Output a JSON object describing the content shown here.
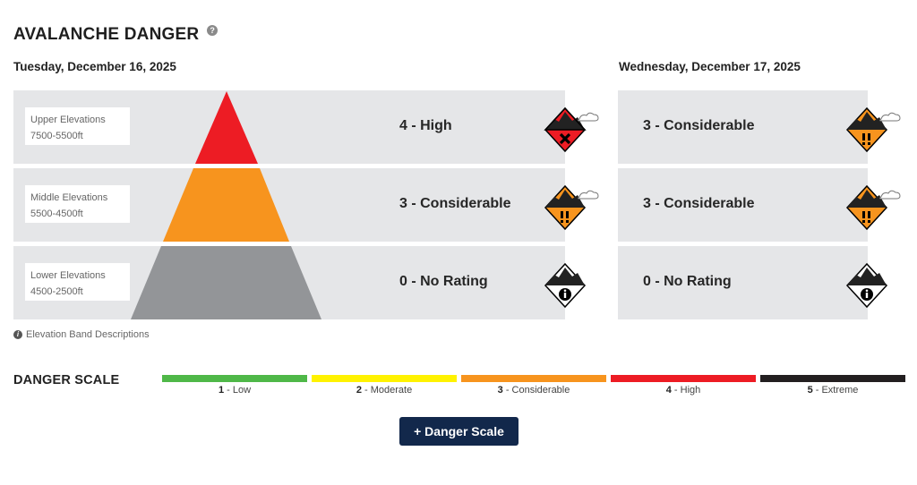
{
  "header": {
    "title": "AVALANCHE DANGER"
  },
  "days": [
    {
      "date": "Tuesday, December 16, 2025",
      "bands": [
        {
          "name": "Upper Elevations",
          "range": "7500-5500ft",
          "rating": "4 - High",
          "level": 4
        },
        {
          "name": "Middle Elevations",
          "range": "5500-4500ft",
          "rating": "3 - Considerable",
          "level": 3
        },
        {
          "name": "Lower Elevations",
          "range": "4500-2500ft",
          "rating": "0 - No Rating",
          "level": 0
        }
      ]
    },
    {
      "date": "Wednesday, December 17, 2025",
      "bands": [
        {
          "rating": "3 - Considerable",
          "level": 3
        },
        {
          "rating": "3 - Considerable",
          "level": 3
        },
        {
          "rating": "0 - No Rating",
          "level": 0
        }
      ]
    }
  ],
  "elevation_link": "Elevation Band Descriptions",
  "danger_scale": {
    "title": "DANGER SCALE",
    "levels": [
      {
        "num": "1",
        "label": " - Low",
        "color": "#4fb848"
      },
      {
        "num": "2",
        "label": " - Moderate",
        "color": "#fff200"
      },
      {
        "num": "3",
        "label": " - Considerable",
        "color": "#f7941e"
      },
      {
        "num": "4",
        "label": " - High",
        "color": "#ed1c24"
      },
      {
        "num": "5",
        "label": " - Extreme",
        "color": "#231f20"
      }
    ],
    "button_label": "+ Danger Scale"
  },
  "colors": {
    "high": "#ed1c24",
    "considerable": "#f7941e",
    "none": "#939598",
    "band_bg": "#e5e6e8",
    "button": "#12284b"
  }
}
